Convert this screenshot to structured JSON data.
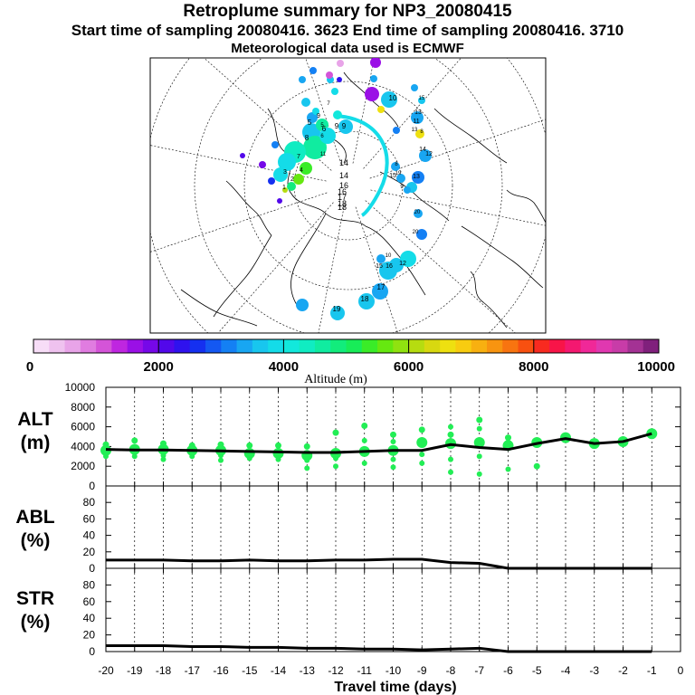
{
  "header": {
    "title": "Retroplume summary for NP3_20080415",
    "subtitle": "Start time of sampling 20080416.  3623     End time of sampling 20080416.  3710",
    "met": "Meteorological data used is ECMWF"
  },
  "map": {
    "day_labels": [
      "1",
      "2",
      "3",
      "4",
      "5",
      "6",
      "7",
      "8",
      "9",
      "10",
      "11",
      "12",
      "13",
      "14",
      "15",
      "16",
      "17",
      "18",
      "19",
      "20"
    ],
    "map_labels": [
      {
        "t": "18"
      },
      {
        "t": "16"
      },
      {
        "t": "8"
      },
      {
        "t": "6"
      },
      {
        "t": "9"
      },
      {
        "t": "14"
      },
      {
        "t": "14"
      },
      {
        "t": "9"
      },
      {
        "t": "10"
      },
      {
        "t": "13"
      },
      {
        "t": "11"
      },
      {
        "t": "8"
      },
      {
        "t": "15"
      },
      {
        "t": "19"
      },
      {
        "t": "7"
      },
      {
        "t": "5"
      },
      {
        "t": "9"
      },
      {
        "t": "3"
      },
      {
        "t": "4"
      },
      {
        "t": "2"
      },
      {
        "t": "1"
      },
      {
        "t": "11"
      },
      {
        "t": "12"
      },
      {
        "t": "13"
      },
      {
        "t": "20"
      },
      {
        "t": "14"
      },
      {
        "t": "15"
      },
      {
        "t": "16"
      },
      {
        "t": "17"
      },
      {
        "t": "18"
      },
      {
        "t": "15"
      },
      {
        "t": "16"
      },
      {
        "t": "17"
      },
      {
        "t": "18"
      },
      {
        "t": "19"
      },
      {
        "t": "20"
      },
      {
        "t": "12"
      },
      {
        "t": "8"
      },
      {
        "t": "9"
      },
      {
        "t": "5"
      },
      {
        "t": "6"
      },
      {
        "t": "7"
      },
      {
        "t": "10"
      },
      {
        "t": "13"
      }
    ]
  },
  "colorbar": {
    "ticks": [
      "0",
      "2000",
      "4000",
      "6000",
      "8000",
      "10000"
    ],
    "label": "Altitude (m)",
    "colors": [
      "#f7ddf7",
      "#efc2ef",
      "#e8a4e8",
      "#e07ce0",
      "#d454d8",
      "#bf26e0",
      "#9a10e6",
      "#7608e8",
      "#5208ea",
      "#2f12ee",
      "#1530f0",
      "#1458f2",
      "#1480f4",
      "#18a6f2",
      "#18c6ee",
      "#14dce8",
      "#12e8dc",
      "#10ecc2",
      "#10eca0",
      "#12ec7c",
      "#18ec58",
      "#3aec28",
      "#66e810",
      "#90e210",
      "#b6dc10",
      "#d8d810",
      "#eee010",
      "#f8cc10",
      "#f8b010",
      "#f89410",
      "#f87410",
      "#f85010",
      "#f82a20",
      "#f81448",
      "#f41870",
      "#f02898",
      "#e038b0",
      "#c83ca8",
      "#a43294",
      "#80207c"
    ]
  },
  "chart_data": [
    {
      "type": "line",
      "title": "ALT",
      "ylabel": "ALT (m)",
      "ylabel_lines": [
        "ALT",
        "(m)"
      ],
      "ylim": [
        0,
        10000
      ],
      "yticks": [
        "0",
        "2000",
        "4000",
        "6000",
        "8000",
        "10000"
      ],
      "x": [
        -20,
        -19,
        -18,
        -17,
        -16,
        -15,
        -14,
        -13,
        -12,
        -11,
        -10,
        -9,
        -8,
        -7,
        -6,
        -5,
        -4,
        -3,
        -2,
        -1
      ],
      "series": [
        {
          "name": "mean altitude",
          "values": [
            3700,
            3650,
            3650,
            3600,
            3550,
            3500,
            3450,
            3400,
            3400,
            3500,
            3600,
            3600,
            4200,
            3900,
            3700,
            4300,
            4800,
            4300,
            4500,
            5300
          ]
        }
      ],
      "spread": [
        {
          "x": -20,
          "a": [
            3600,
            4200,
            3000
          ]
        },
        {
          "x": -19,
          "a": [
            3700,
            4600,
            3000
          ]
        },
        {
          "x": -18,
          "a": [
            3700,
            4300,
            3100,
            2700
          ]
        },
        {
          "x": -17,
          "a": [
            3600,
            4100,
            3000
          ]
        },
        {
          "x": -16,
          "a": [
            3600,
            4200,
            3100,
            2600
          ]
        },
        {
          "x": -15,
          "a": [
            3300,
            4100,
            2800
          ]
        },
        {
          "x": -14,
          "a": [
            3300,
            4100,
            2700
          ]
        },
        {
          "x": -13,
          "a": [
            3100,
            4000,
            2600,
            1800
          ]
        },
        {
          "x": -12,
          "a": [
            3300,
            5400,
            2800,
            2000
          ]
        },
        {
          "x": -11,
          "a": [
            3500,
            6100,
            4600,
            2300
          ]
        },
        {
          "x": -10,
          "a": [
            3600,
            5200,
            4500,
            2700,
            1900
          ]
        },
        {
          "x": -9,
          "a": [
            4400,
            5700,
            2300,
            3200
          ]
        },
        {
          "x": -8,
          "a": [
            4300,
            5200,
            6000,
            2700,
            1400
          ]
        },
        {
          "x": -7,
          "a": [
            4400,
            6700,
            5800,
            3000,
            1200
          ]
        },
        {
          "x": -6,
          "a": [
            4100,
            4900,
            1700
          ]
        },
        {
          "x": -5,
          "a": [
            4400,
            2000
          ]
        },
        {
          "x": -4,
          "a": [
            4900
          ]
        },
        {
          "x": -3,
          "a": [
            4300
          ]
        },
        {
          "x": -2,
          "a": [
            4500
          ]
        },
        {
          "x": -1,
          "a": [
            5300
          ]
        }
      ]
    },
    {
      "type": "line",
      "title": "ABL",
      "ylabel": "ABL (%)",
      "ylabel_lines": [
        "ABL",
        "(%)"
      ],
      "ylim": [
        0,
        100
      ],
      "yticks": [
        "0",
        "20",
        "40",
        "60",
        "80"
      ],
      "x": [
        -20,
        -19,
        -18,
        -17,
        -16,
        -15,
        -14,
        -13,
        -12,
        -11,
        -10,
        -9,
        -8,
        -7,
        -6,
        -5,
        -4,
        -3,
        -2,
        -1
      ],
      "series": [
        {
          "name": "ABL fraction",
          "values": [
            10,
            10,
            10,
            9,
            9,
            10,
            9,
            9,
            10,
            10,
            11,
            11,
            7,
            6,
            0,
            0,
            0,
            0,
            0,
            0
          ]
        }
      ]
    },
    {
      "type": "line",
      "title": "STR",
      "ylabel": "STR (%)",
      "ylabel_lines": [
        "STR",
        "(%)"
      ],
      "ylim": [
        0,
        100
      ],
      "yticks": [
        "0",
        "20",
        "40",
        "60",
        "80"
      ],
      "x": [
        -20,
        -19,
        -18,
        -17,
        -16,
        -15,
        -14,
        -13,
        -12,
        -11,
        -10,
        -9,
        -8,
        -7,
        -6,
        -5,
        -4,
        -3,
        -2,
        -1
      ],
      "series": [
        {
          "name": "STR fraction",
          "values": [
            7,
            7,
            7,
            6,
            6,
            5,
            5,
            4,
            4,
            3,
            3,
            2,
            3,
            4,
            0,
            0,
            0,
            0,
            0,
            0
          ]
        }
      ],
      "xlabel": "Travel time (days)",
      "xticks": [
        "-20",
        "-19",
        "-18",
        "-17",
        "-16",
        "-15",
        "-14",
        "-13",
        "-12",
        "-11",
        "-10",
        "-9",
        "-8",
        "-7",
        "-6",
        "-5",
        "-4",
        "-3",
        "-2",
        "-1",
        "0"
      ]
    }
  ]
}
